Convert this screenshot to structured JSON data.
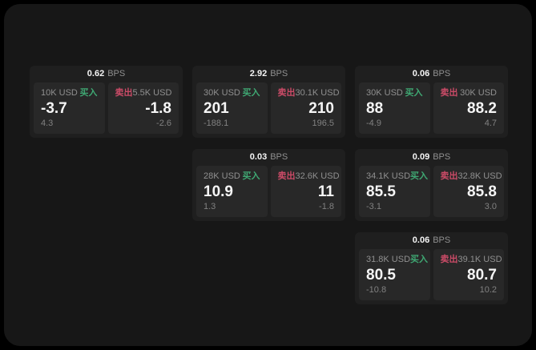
{
  "theme": {
    "page_bg": "#000000",
    "window_bg": "#171717",
    "card_bg": "#1f1f1f",
    "panel_bg": "#282828",
    "text_primary": "#f5f5f5",
    "text_muted": "#909090",
    "text_faint": "#818181",
    "buy_color": "#3fa873",
    "sell_color": "#cb4b67"
  },
  "labels": {
    "bps_suffix": "BPS",
    "buy": "买入",
    "sell": "卖出"
  },
  "cards": [
    {
      "row": 1,
      "col": 1,
      "bps": "0.62",
      "buy": {
        "amount": "10K USD",
        "value": "-3.7",
        "delta": "4.3"
      },
      "sell": {
        "amount": "5.5K USD",
        "value": "-1.8",
        "delta": "-2.6"
      }
    },
    {
      "row": 1,
      "col": 2,
      "bps": "2.92",
      "buy": {
        "amount": "30K USD",
        "value": "201",
        "delta": "-188.1"
      },
      "sell": {
        "amount": "30.1K USD",
        "value": "210",
        "delta": "196.5"
      }
    },
    {
      "row": 1,
      "col": 3,
      "bps": "0.06",
      "buy": {
        "amount": "30K USD",
        "value": "88",
        "delta": "-4.9"
      },
      "sell": {
        "amount": "30K USD",
        "value": "88.2",
        "delta": "4.7"
      }
    },
    {
      "row": 2,
      "col": 2,
      "bps": "0.03",
      "buy": {
        "amount": "28K USD",
        "value": "10.9",
        "delta": "1.3"
      },
      "sell": {
        "amount": "32.6K USD",
        "value": "11",
        "delta": "-1.8"
      }
    },
    {
      "row": 2,
      "col": 3,
      "bps": "0.09",
      "buy": {
        "amount": "34.1K USD",
        "value": "85.5",
        "delta": "-3.1"
      },
      "sell": {
        "amount": "32.8K USD",
        "value": "85.8",
        "delta": "3.0"
      }
    },
    {
      "row": 3,
      "col": 3,
      "bps": "0.06",
      "buy": {
        "amount": "31.8K USD",
        "value": "80.5",
        "delta": "-10.8"
      },
      "sell": {
        "amount": "39.1K USD",
        "value": "80.7",
        "delta": "10.2"
      }
    }
  ]
}
